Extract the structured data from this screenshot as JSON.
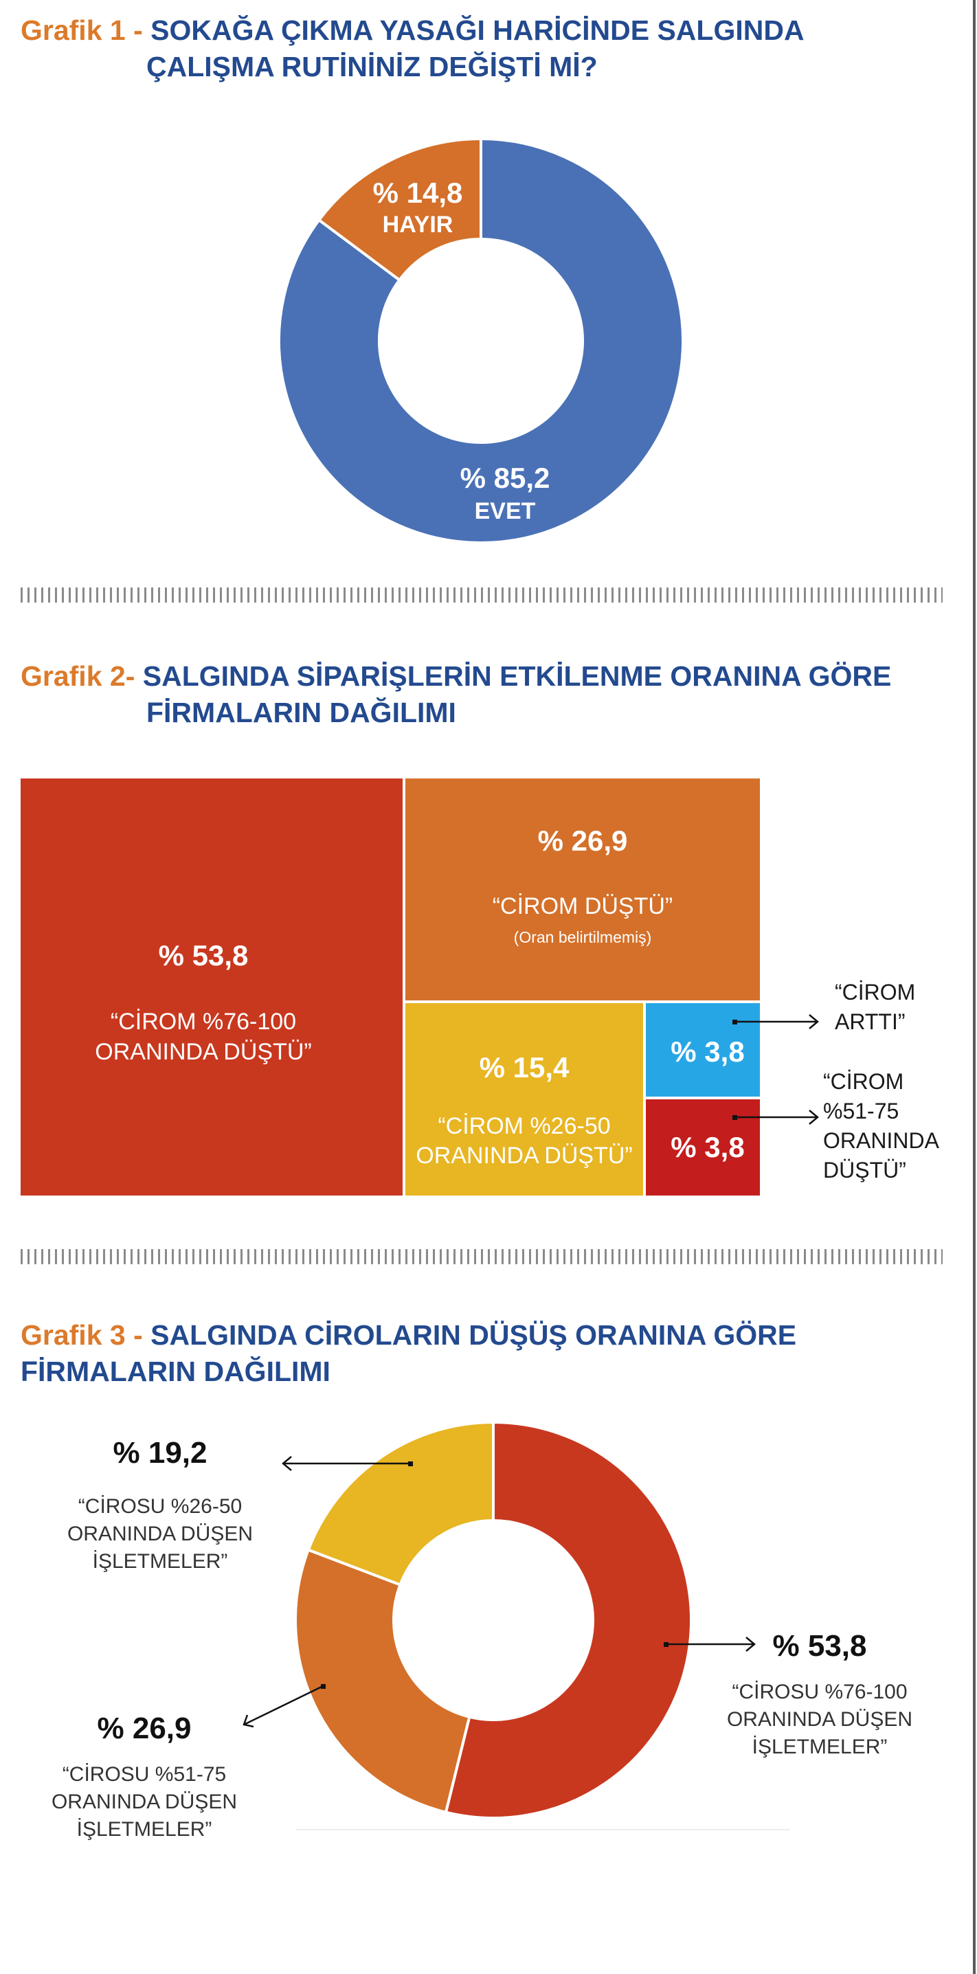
{
  "chart1": {
    "prefix": "Grafik 1 - ",
    "title_line1": "SOKAĞA ÇIKMA YASAĞI HARİCİNDE SALGINDA",
    "title_line2": "ÇALIŞMA RUTİNİNİZ DEĞİŞTİ Mİ?",
    "slice_labels": [
      "% 85,2",
      "% 14,8"
    ],
    "slice_names": [
      "EVET",
      "HAYIR"
    ]
  },
  "chart2": {
    "prefix": "Grafik 2- ",
    "title_line1": "SALGINDA SİPARİŞLERİN ETKİLENME ORANINA GÖRE",
    "title_line2": "FİRMALARIN DAĞILIMI",
    "block_values": [
      "% 53,8",
      "% 26,9",
      "% 15,4",
      "% 3,8",
      "% 3,8"
    ],
    "block_a_text": [
      "“CİROM %76-100",
      "ORANINDA DÜŞTÜ”"
    ],
    "block_b_text": [
      "“CİROM DÜŞTÜ”",
      "(Oran belirtilmemiş)"
    ],
    "block_c_text": [
      "“CİROM %26-50",
      "ORANINDA DÜŞTÜ”"
    ],
    "callout_up": [
      "“CİROM",
      "ARTTI”"
    ],
    "callout_down": [
      "“CİROM",
      "%51-75",
      "ORANINDA",
      "DÜŞTÜ”"
    ]
  },
  "chart3": {
    "prefix": "Grafik 3 - ",
    "title_line1": "SALGINDA CİROLARIN DÜŞÜŞ ORANINA GÖRE",
    "title_line2": "FİRMALARIN DAĞILIMI",
    "labels": [
      {
        "value": "% 53,8",
        "lines": [
          "“CİROSU %76-100",
          "ORANINDA DÜŞEN",
          "İŞLETMELER”"
        ]
      },
      {
        "value": "% 26,9",
        "lines": [
          "“CİROSU %51-75",
          "ORANINDA DÜŞEN",
          "İŞLETMELER”"
        ]
      },
      {
        "value": "% 19,2",
        "lines": [
          "“CİROSU %26-50",
          "ORANINDA DÜŞEN",
          "İŞLETMELER”"
        ]
      }
    ]
  },
  "colors": {
    "blue": "#4a71b6",
    "orange": "#d4702a",
    "red": "#c8381f",
    "yellow": "#e8b523",
    "lightblue": "#27a6e6",
    "darkred": "#c41d1d",
    "title_blue": "#234a8f",
    "title_orange": "#dc7a2b"
  },
  "chart_data": [
    {
      "type": "pie",
      "title": "SOKAĞA ÇIKMA YASAĞI HARİCİNDE SALGINDA ÇALIŞMA RUTİNİNİZ DEĞİŞTİ Mİ?",
      "categories": [
        "EVET",
        "HAYIR"
      ],
      "values": [
        85.2,
        14.8
      ]
    },
    {
      "type": "bar",
      "title": "SALGINDA SİPARİŞLERİN ETKİLENME ORANINA GÖRE FİRMALARIN DAĞILIMI",
      "categories": [
        "“CİROM %76-100 ORANINDA DÜŞTÜ”",
        "“CİROM DÜŞTÜ” (Oran belirtilmemiş)",
        "“CİROM %26-50 ORANINDA DÜŞTÜ”",
        "“CİROM ARTTI”",
        "“CİROM %51-75 ORANINDA DÜŞTÜ”"
      ],
      "values": [
        53.8,
        26.9,
        15.4,
        3.8,
        3.8
      ]
    },
    {
      "type": "pie",
      "title": "SALGINDA CİROLARIN DÜŞÜŞ ORANINA GÖRE FİRMALARIN DAĞILIMI",
      "categories": [
        "“CİROSU %76-100 ORANINDA DÜŞEN İŞLETMELER”",
        "“CİROSU %51-75 ORANINDA DÜŞEN İŞLETMELER”",
        "“CİROSU %26-50 ORANINDA DÜŞEN İŞLETMELER”"
      ],
      "values": [
        53.8,
        26.9,
        19.2
      ]
    }
  ]
}
